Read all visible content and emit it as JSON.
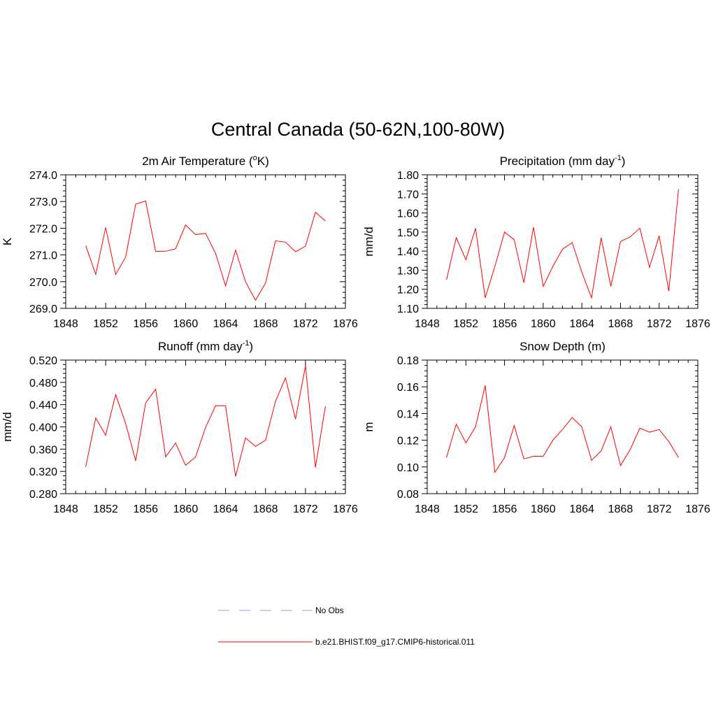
{
  "main_title": "Central Canada (50-62N,100-80W)",
  "chart_data": [
    {
      "type": "line",
      "title": "2m Air Temperature (",
      "title_sup": "o",
      "title_after": "K)",
      "ylabel": "K",
      "xlabel": "",
      "xlim": [
        1848,
        1876
      ],
      "xticks": [
        "1848",
        "1852",
        "1856",
        "1860",
        "1864",
        "1868",
        "1872",
        "1876"
      ],
      "ylim": [
        269.0,
        274.0
      ],
      "yticks": [
        "269.0",
        "270.0",
        "271.0",
        "272.0",
        "273.0",
        "274.0"
      ],
      "x": [
        1850,
        1851,
        1852,
        1853,
        1854,
        1855,
        1856,
        1857,
        1858,
        1859,
        1860,
        1861,
        1862,
        1863,
        1864,
        1865,
        1866,
        1867,
        1868,
        1869,
        1870,
        1871,
        1872,
        1873,
        1874
      ],
      "series": [
        {
          "name": "b.e21.BHIST.f09_g17.CMIP6-historical.011",
          "color": "#ff0000",
          "values": [
            271.35,
            270.27,
            272.03,
            270.27,
            270.92,
            272.9,
            273.02,
            271.13,
            271.14,
            271.23,
            272.12,
            271.76,
            271.81,
            271.06,
            269.84,
            271.18,
            270.0,
            269.3,
            269.94,
            271.53,
            271.48,
            271.12,
            271.33,
            272.6,
            272.27
          ]
        }
      ]
    },
    {
      "type": "line",
      "title": "Precipitation (mm day",
      "title_sup": "-1",
      "title_after": ")",
      "ylabel": "mm/d",
      "xlabel": "",
      "xlim": [
        1848,
        1876
      ],
      "xticks": [
        "1848",
        "1852",
        "1856",
        "1860",
        "1864",
        "1868",
        "1872",
        "1876"
      ],
      "ylim": [
        1.1,
        1.8
      ],
      "yticks": [
        "1.10",
        "1.20",
        "1.30",
        "1.40",
        "1.50",
        "1.60",
        "1.70",
        "1.80"
      ],
      "x": [
        1850,
        1851,
        1852,
        1853,
        1854,
        1855,
        1856,
        1857,
        1858,
        1859,
        1860,
        1861,
        1862,
        1863,
        1864,
        1865,
        1866,
        1867,
        1868,
        1869,
        1870,
        1871,
        1872,
        1873,
        1874
      ],
      "series": [
        {
          "name": "b.e21.BHIST.f09_g17.CMIP6-historical.011",
          "color": "#ff0000",
          "values": [
            1.25,
            1.47,
            1.355,
            1.52,
            1.155,
            1.32,
            1.5,
            1.46,
            1.235,
            1.525,
            1.215,
            1.32,
            1.41,
            1.445,
            1.29,
            1.155,
            1.47,
            1.215,
            1.45,
            1.475,
            1.52,
            1.315,
            1.48,
            1.19,
            1.725
          ]
        }
      ]
    },
    {
      "type": "line",
      "title": "Runoff (mm day",
      "title_sup": "-1",
      "title_after": ")",
      "ylabel": "mm/d",
      "xlabel": "",
      "xlim": [
        1848,
        1876
      ],
      "xticks": [
        "1848",
        "1852",
        "1856",
        "1860",
        "1864",
        "1868",
        "1872",
        "1876"
      ],
      "ylim": [
        0.28,
        0.52
      ],
      "yticks": [
        "0.280",
        "0.320",
        "0.360",
        "0.400",
        "0.440",
        "0.480",
        "0.520"
      ],
      "x": [
        1850,
        1851,
        1852,
        1853,
        1854,
        1855,
        1856,
        1857,
        1858,
        1859,
        1860,
        1861,
        1862,
        1863,
        1864,
        1865,
        1866,
        1867,
        1868,
        1869,
        1870,
        1871,
        1872,
        1873,
        1874
      ],
      "series": [
        {
          "name": "b.e21.BHIST.f09_g17.CMIP6-historical.011",
          "color": "#ff0000",
          "values": [
            0.328,
            0.416,
            0.385,
            0.458,
            0.406,
            0.339,
            0.443,
            0.468,
            0.346,
            0.371,
            0.331,
            0.346,
            0.399,
            0.438,
            0.438,
            0.311,
            0.38,
            0.365,
            0.376,
            0.446,
            0.488,
            0.414,
            0.51,
            0.327,
            0.437
          ]
        }
      ]
    },
    {
      "type": "line",
      "title": "Snow Depth (m)",
      "title_sup": "",
      "title_after": "",
      "ylabel": "m",
      "xlabel": "",
      "xlim": [
        1848,
        1876
      ],
      "xticks": [
        "1848",
        "1852",
        "1856",
        "1860",
        "1864",
        "1868",
        "1872",
        "1876"
      ],
      "ylim": [
        0.08,
        0.18
      ],
      "yticks": [
        "0.08",
        "0.10",
        "0.12",
        "0.14",
        "0.16",
        "0.18"
      ],
      "x": [
        1850,
        1851,
        1852,
        1853,
        1854,
        1855,
        1856,
        1857,
        1858,
        1859,
        1860,
        1861,
        1862,
        1863,
        1864,
        1865,
        1866,
        1867,
        1868,
        1869,
        1870,
        1871,
        1872,
        1873,
        1874
      ],
      "series": [
        {
          "name": "b.e21.BHIST.f09_g17.CMIP6-historical.011",
          "color": "#ff0000",
          "values": [
            0.107,
            0.132,
            0.118,
            0.13,
            0.161,
            0.096,
            0.107,
            0.131,
            0.106,
            0.108,
            0.108,
            0.12,
            0.128,
            0.137,
            0.13,
            0.105,
            0.112,
            0.13,
            0.101,
            0.113,
            0.129,
            0.126,
            0.128,
            0.119,
            0.107
          ]
        }
      ]
    }
  ],
  "legend": {
    "items": [
      {
        "label": "No Obs",
        "color": "#9999ff",
        "dash": true
      },
      {
        "label": "b.e21.BHIST.f09_g17.CMIP6-historical.011",
        "color": "#ff0000",
        "dash": false
      }
    ]
  }
}
